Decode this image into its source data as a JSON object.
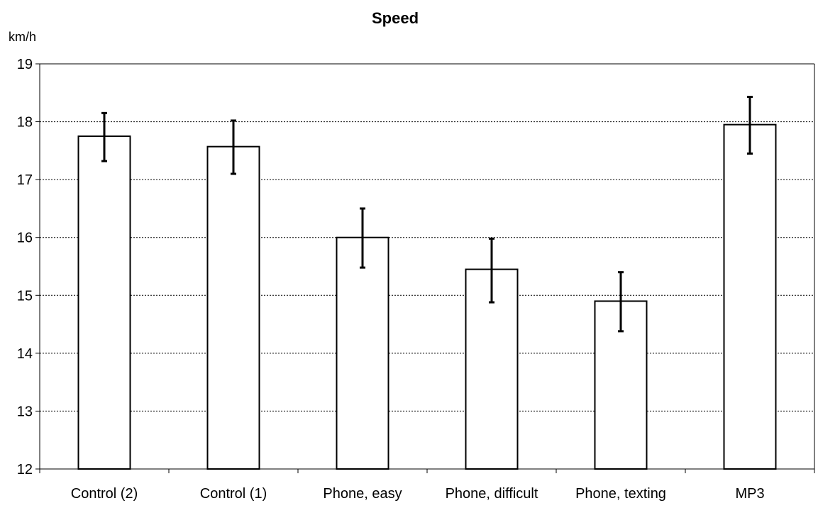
{
  "chart_data": {
    "type": "bar",
    "title": "Speed",
    "ylabel": "km/h",
    "xlabel": "",
    "categories": [
      "Control (2)",
      "Control (1)",
      "Phone, easy",
      "Phone, difficult",
      "Phone, texting",
      "MP3"
    ],
    "values": [
      17.75,
      17.57,
      16.0,
      15.45,
      14.9,
      17.95
    ],
    "error_low": [
      17.32,
      17.1,
      15.48,
      14.88,
      14.38,
      17.45
    ],
    "error_high": [
      18.15,
      18.02,
      16.5,
      15.98,
      15.4,
      18.43
    ],
    "ylim": [
      12,
      19
    ],
    "yticks": [
      12,
      13,
      14,
      15,
      16,
      17,
      18,
      19
    ],
    "grid": true,
    "colors": {
      "bar_fill": "#ffffff",
      "bar_stroke": "#000000",
      "grid": "#000000",
      "error_bar": "#000000"
    }
  }
}
